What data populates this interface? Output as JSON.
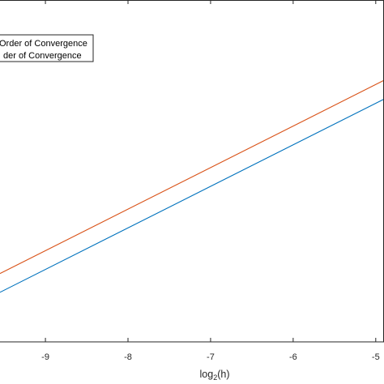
{
  "chart_data": {
    "type": "line",
    "xlabel": {
      "base": "log",
      "subscript": "2",
      "rest": "(h)"
    },
    "xlim": [
      -9.55,
      -4.9
    ],
    "ylim": [
      0,
      1
    ],
    "x_ticks": [
      -9,
      -8,
      -7,
      -6,
      -5
    ],
    "x_tick_labels": [
      "-9",
      "-8",
      "-7",
      "-6",
      "-5"
    ],
    "grid": false,
    "legend": {
      "placement": "top-left",
      "entries": [
        "Order of Convergence",
        "der of Convergence"
      ]
    },
    "series": [
      {
        "color": "#D95319",
        "x": [
          -9.55,
          -4.9
        ],
        "y": [
          0.2,
          0.765
        ]
      },
      {
        "color": "#0072BD",
        "x": [
          -9.55,
          -4.9
        ],
        "y": [
          0.145,
          0.71
        ]
      }
    ]
  }
}
